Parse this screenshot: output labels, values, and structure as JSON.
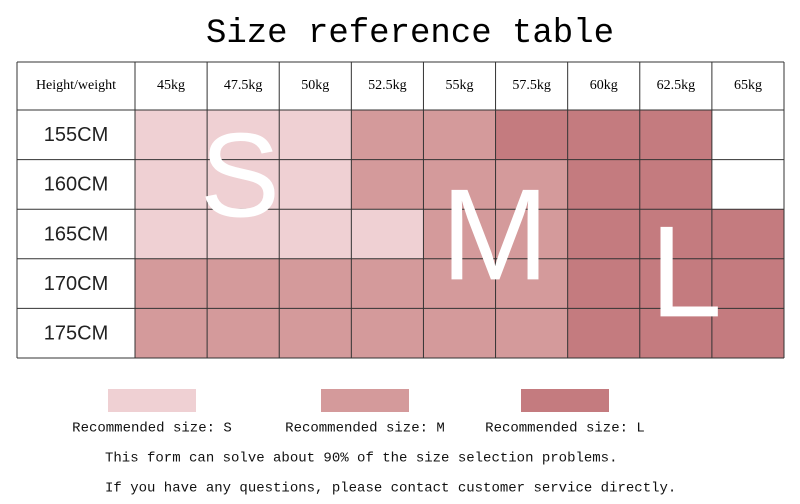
{
  "title": "Size reference table",
  "table": {
    "header": [
      "Height/weight",
      "45kg",
      "47.5kg",
      "50kg",
      "52.5kg",
      "55kg",
      "57.5kg",
      "60kg",
      "62.5kg",
      "65kg"
    ],
    "rows": [
      {
        "label": "155CM",
        "fills": [
          "#efd0d3",
          "#efd0d3",
          "#efd0d3",
          "#d49a9b",
          "#d49a9b",
          "#c47b7f",
          "#c47b7f",
          "#c47b7f",
          "#ffffff"
        ]
      },
      {
        "label": "160CM",
        "fills": [
          "#efd0d3",
          "#efd0d3",
          "#efd0d3",
          "#d49a9b",
          "#d49a9b",
          "#d49a9b",
          "#c47b7f",
          "#c47b7f",
          "#ffffff"
        ]
      },
      {
        "label": "165CM",
        "fills": [
          "#efd0d3",
          "#efd0d3",
          "#efd0d3",
          "#efd0d3",
          "#d49a9b",
          "#d49a9b",
          "#c47b7f",
          "#c47b7f",
          "#c47b7f"
        ]
      },
      {
        "label": "170CM",
        "fills": [
          "#d49a9b",
          "#d49a9b",
          "#d49a9b",
          "#d49a9b",
          "#d49a9b",
          "#d49a9b",
          "#c47b7f",
          "#c47b7f",
          "#c47b7f"
        ]
      },
      {
        "label": "175CM",
        "fills": [
          "#d49a9b",
          "#d49a9b",
          "#d49a9b",
          "#d49a9b",
          "#d49a9b",
          "#d49a9b",
          "#c47b7f",
          "#c47b7f",
          "#c47b7f"
        ]
      }
    ]
  },
  "overlay": [
    "S",
    "M",
    "L"
  ],
  "legend": [
    {
      "label": "Recommended size: S",
      "color": "#efd0d3"
    },
    {
      "label": "Recommended size: M",
      "color": "#d49a9b"
    },
    {
      "label": "Recommended size: L",
      "color": "#c47b7f"
    }
  ],
  "notes": [
    "This form can solve about 90% of the size selection problems.",
    "If you have any questions, please contact customer service directly."
  ]
}
